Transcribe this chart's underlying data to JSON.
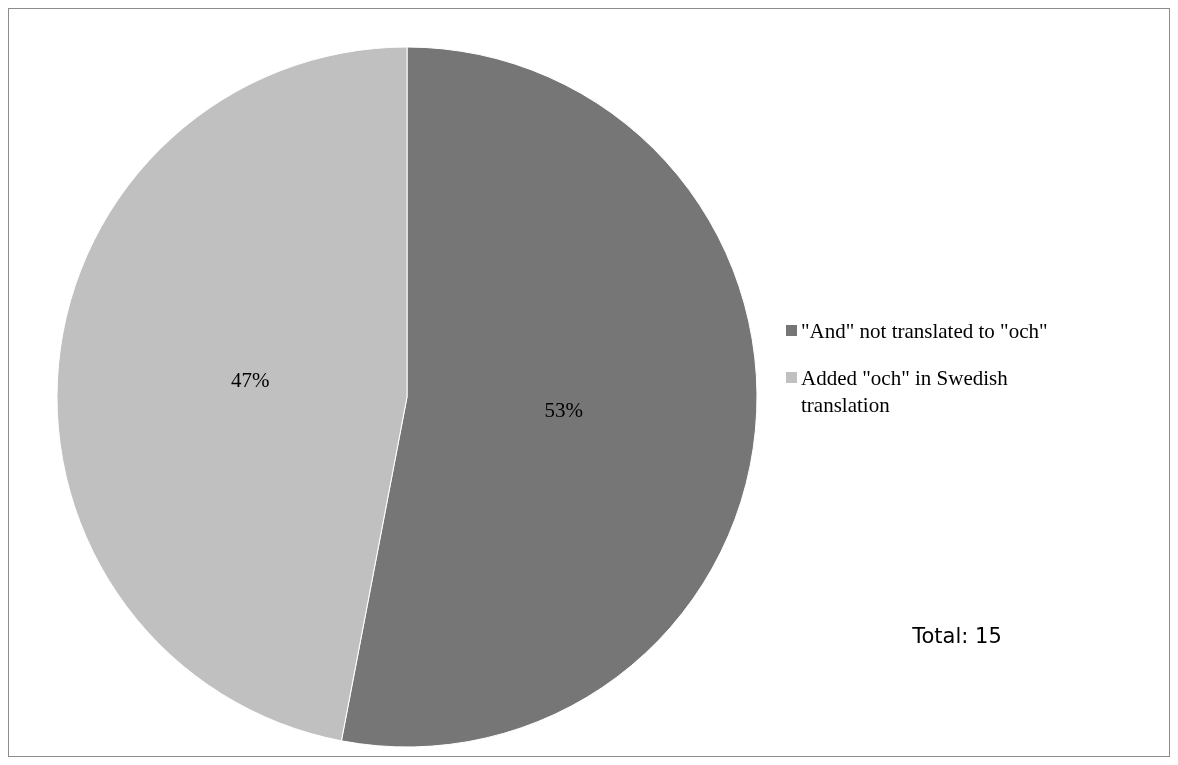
{
  "chart_data": {
    "type": "pie",
    "categories": [
      "\"And\" not translated to \"och\"",
      "Added \"och\" in Swedish translation"
    ],
    "values": [
      53,
      47
    ],
    "colors": [
      "#767676",
      "#c0c0c0"
    ],
    "value_labels": [
      "53%",
      "47%"
    ],
    "legend": "right",
    "annotations": [
      "Total: 15"
    ]
  }
}
